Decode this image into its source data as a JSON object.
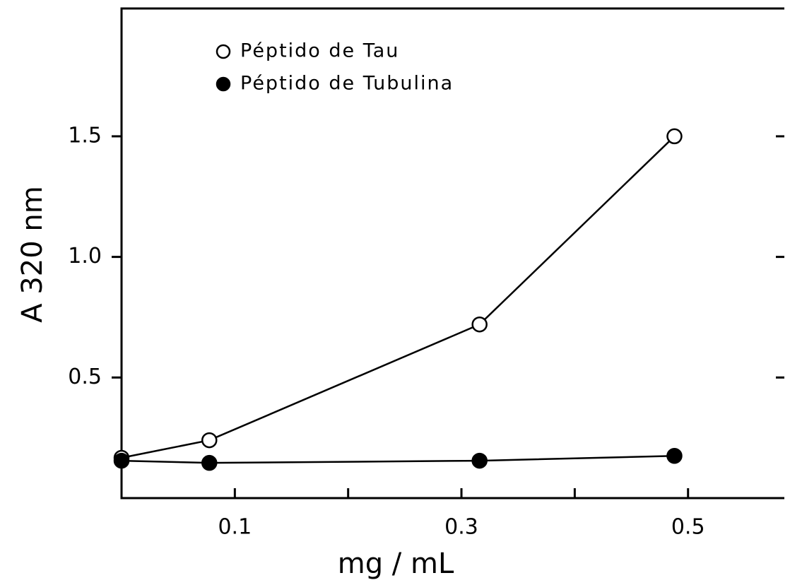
{
  "chart_data": {
    "type": "line",
    "xlabel": "mg / mL",
    "ylabel": "A 320 nm",
    "series": [
      {
        "name": "Péptido de Tau",
        "color": "#000000",
        "marker": "open",
        "x": [
          0,
          0.0775,
          0.316,
          0.488
        ],
        "values": [
          0.167,
          0.24,
          0.72,
          1.5
        ]
      },
      {
        "name": "Péptido de Tubulina",
        "color": "#000000",
        "marker": "filled",
        "x": [
          0,
          0.0775,
          0.316,
          0.488
        ],
        "values": [
          0.155,
          0.146,
          0.155,
          0.175
        ]
      }
    ],
    "xlim": [
      0,
      0.585
    ],
    "xticks": [
      0.1,
      0.3,
      0.5
    ],
    "xminorticks": [
      0.2,
      0.4
    ],
    "ylim": [
      0,
      2.03
    ],
    "yticks": [
      0.5,
      {
        "value": 1.0,
        "label": "1.0"
      },
      1.5
    ],
    "legend": "upper left",
    "grid": false
  }
}
